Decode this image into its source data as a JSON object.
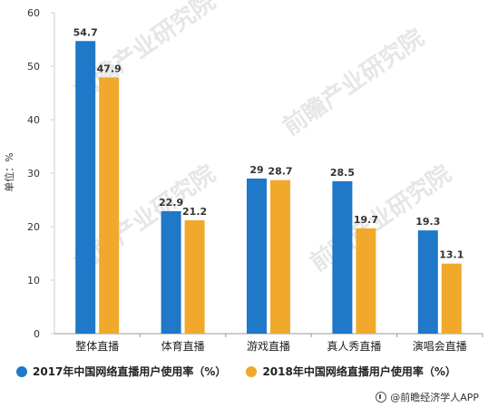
{
  "chart_data": {
    "type": "bar",
    "categories": [
      "整体直播",
      "体育直播",
      "游戏直播",
      "真人秀直播",
      "演唱会直播"
    ],
    "series": [
      {
        "name": "2017年中国网络直播用户使用率（%）",
        "values": [
          54.7,
          22.9,
          29,
          28.5,
          19.3
        ],
        "color": "#1f78c8"
      },
      {
        "name": "2018年中国网络直播用户使用率（%）",
        "values": [
          47.9,
          21.2,
          28.7,
          19.7,
          13.1
        ],
        "color": "#f0a92a"
      }
    ],
    "value_labels": [
      [
        "54.7",
        "22.9",
        "29",
        "28.5",
        "19.3"
      ],
      [
        "47.9",
        "21.2",
        "28.7",
        "19.7",
        "13.1"
      ]
    ],
    "ylabel": "单位：%",
    "ylim": [
      0,
      60
    ],
    "yticks": [
      0,
      10,
      20,
      30,
      40,
      50,
      60
    ],
    "grid": false,
    "legend_position": "bottom-left"
  },
  "legend": {
    "item_2017": "2017年中国网络直播用户使用率（%）",
    "item_2018": "2018年中国网络直播用户使用率（%）"
  },
  "source": "前瞻经济学人APP",
  "watermark": "前瞻产业研究院"
}
